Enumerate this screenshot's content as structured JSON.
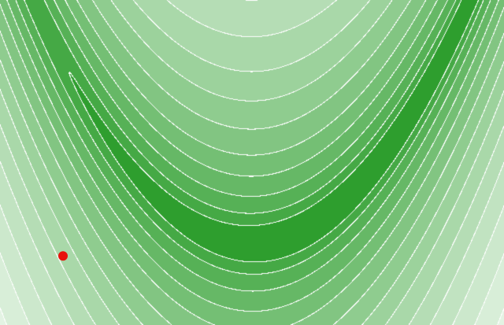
{
  "chart_data": {
    "type": "contour",
    "function": "rosenbrock",
    "parameters": {
      "a": 1,
      "b": 100
    },
    "x_range": [
      -2,
      2
    ],
    "y_range": [
      -1,
      3
    ],
    "contour_levels": [
      6,
      15,
      35,
      70,
      120,
      200,
      310,
      450,
      650,
      900,
      1250,
      1700,
      2300,
      3100
    ],
    "colors": {
      "low": "#2e9e2e",
      "high": "#eef8ee",
      "contour_line": "#ffffff",
      "marker": "#e8120c"
    },
    "points": [
      {
        "x": -1.5,
        "y": -0.15
      }
    ],
    "title": "",
    "xlabel": "",
    "ylabel": "",
    "grid": false,
    "legend": "none"
  }
}
